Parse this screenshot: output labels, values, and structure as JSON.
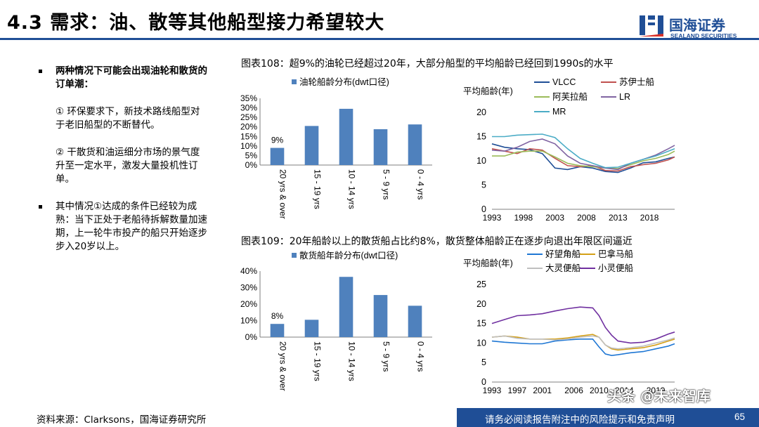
{
  "header": {
    "title": "4.3 需求：油、散等其他船型接力希望较大",
    "logo_cn": "国海证券",
    "logo_en": "SEALAND SECURITIES",
    "brand_color": "#1f4e96"
  },
  "bullets": {
    "b1": "两种情况下可能会出现油轮和散货的订单潮：",
    "p1": "① 环保要求下，新技术路线船型对于老旧船型的不断替代。",
    "p2": "② 干散货和油运细分市场的景气度升至一定水平，激发大量投机性订单。",
    "b2": "其中情况①达成的条件已经较为成熟：当下正处于老船待拆解数量加速期，上一轮牛市投产的船只开始逐步步入20岁以上。"
  },
  "figures": {
    "fig108_title": "图表108：超9%的油轮已经超过20年，大部分船型的平均船龄已经回到1990s的水平",
    "fig109_title": "图表109：20年船龄以上的散货船占比约8%，散货整体船龄正在逐步向退出年限区间逼近"
  },
  "footer": {
    "source": "资料来源：Clarksons，国海证券研究所",
    "disclaimer": "请务必阅读报告附注中的风险提示和免责声明",
    "page": "65",
    "watermark": "头条 @未来智库"
  },
  "chart_data": [
    {
      "type": "bar",
      "legend": "油轮船龄分布(dwt口径)",
      "categories": [
        "20 yrs & over",
        "15 - 19 yrs",
        "10 - 14 yrs",
        "5 - 9 yrs",
        "0 - 4 yrs"
      ],
      "values": [
        9,
        20.5,
        29.5,
        18.8,
        21.3
      ],
      "data_labels": [
        "9%",
        "",
        "",
        "",
        ""
      ],
      "yticks": [
        "0%",
        "5%",
        "10%",
        "15%",
        "20%",
        "25%",
        "30%",
        "35%"
      ],
      "ylim": [
        0,
        35
      ],
      "color": "#4f81bd"
    },
    {
      "type": "line",
      "ylabel": "平均船龄(年)",
      "xticks": [
        "1993",
        "1998",
        "2003",
        "2008",
        "2013",
        "2018"
      ],
      "yticks": [
        "0",
        "5",
        "10",
        "15",
        "20"
      ],
      "xlim": [
        1993,
        2022
      ],
      "ylim": [
        0,
        20
      ],
      "series": [
        {
          "name": "VLCC",
          "color": "#1f4e96",
          "x": [
            1993,
            1995,
            1997,
            1999,
            2001,
            2003,
            2005,
            2007,
            2009,
            2011,
            2013,
            2015,
            2017,
            2019,
            2021,
            2022
          ],
          "y": [
            13.5,
            12.8,
            12.5,
            12.3,
            11.5,
            8.5,
            8.2,
            8.8,
            8.5,
            7.8,
            7.6,
            8.5,
            9.6,
            9.8,
            10.5,
            10.8
          ]
        },
        {
          "name": "苏伊士船",
          "color": "#c0504d",
          "x": [
            1993,
            1995,
            1997,
            1999,
            2001,
            2003,
            2005,
            2007,
            2009,
            2011,
            2013,
            2015,
            2017,
            2019,
            2021,
            2022
          ],
          "y": [
            12.5,
            12,
            11.5,
            12.5,
            12.2,
            10.5,
            9,
            8.8,
            9,
            8,
            7.9,
            8.8,
            9.2,
            9.5,
            10.2,
            10.8
          ]
        },
        {
          "name": "阿芙拉船",
          "color": "#9bbb59",
          "x": [
            1993,
            1995,
            1997,
            1999,
            2001,
            2003,
            2005,
            2007,
            2009,
            2011,
            2013,
            2015,
            2017,
            2019,
            2021,
            2022
          ],
          "y": [
            11,
            11,
            11.8,
            12,
            12,
            10.8,
            9.5,
            9,
            8.8,
            8.5,
            8.4,
            9.2,
            10,
            10.5,
            11.3,
            12
          ]
        },
        {
          "name": "LR",
          "color": "#8064a2",
          "x": [
            1993,
            1995,
            1997,
            1999,
            2001,
            2003,
            2005,
            2007,
            2009,
            2011,
            2013,
            2015,
            2017,
            2019,
            2021,
            2022
          ],
          "y": [
            12.2,
            12,
            12.8,
            14,
            14.5,
            13.5,
            11,
            9.5,
            9,
            8.5,
            8.2,
            9.5,
            10.3,
            11.2,
            12.5,
            13.2
          ]
        },
        {
          "name": "MR",
          "color": "#4bacc6",
          "x": [
            1993,
            1995,
            1997,
            1999,
            2001,
            2003,
            2005,
            2007,
            2009,
            2011,
            2013,
            2015,
            2017,
            2019,
            2021,
            2022
          ],
          "y": [
            15,
            15,
            15.3,
            15.4,
            15.5,
            14.8,
            12.5,
            10.5,
            9.5,
            8.6,
            8.7,
            9.5,
            10.3,
            11,
            12,
            12.5
          ]
        }
      ]
    },
    {
      "type": "bar",
      "legend": "散货船年龄分布(dwt口径)",
      "categories": [
        "20 yrs & over",
        "15 - 19 yrs",
        "10 - 14 yrs",
        "5 - 9 yrs",
        "0 - 4 yrs"
      ],
      "values": [
        8,
        10.5,
        36.5,
        25.5,
        19
      ],
      "data_labels": [
        "8%",
        "",
        "",
        "",
        ""
      ],
      "yticks": [
        "0%",
        "10%",
        "20%",
        "30%",
        "40%"
      ],
      "ylim": [
        0,
        40
      ],
      "color": "#4f81bd"
    },
    {
      "type": "line",
      "ylabel": "平均船龄(年)",
      "xticks": [
        "1993",
        "1997",
        "2001",
        "2006",
        "2010",
        "2014",
        "2019"
      ],
      "yticks": [
        "0",
        "5",
        "10",
        "15",
        "20",
        "25"
      ],
      "xlim": [
        1993,
        2022
      ],
      "ylim": [
        0,
        25
      ],
      "series": [
        {
          "name": "好望角船",
          "color": "#1f77d4",
          "x": [
            1993,
            1995,
            1997,
            1999,
            2001,
            2003,
            2005,
            2007,
            2009,
            2010,
            2011,
            2012,
            2013,
            2015,
            2017,
            2019,
            2021,
            2022
          ],
          "y": [
            10.5,
            10.2,
            10,
            9.8,
            9.8,
            10.5,
            10.8,
            11,
            11,
            9,
            7.2,
            6.8,
            7,
            7.5,
            7.8,
            8.5,
            9.2,
            9.8
          ]
        },
        {
          "name": "巴拿马船",
          "color": "#d4a017",
          "x": [
            1993,
            1995,
            1997,
            1999,
            2001,
            2003,
            2005,
            2007,
            2009,
            2010,
            2011,
            2012,
            2013,
            2015,
            2017,
            2019,
            2021,
            2022
          ],
          "y": [
            11.5,
            11.8,
            11.5,
            11,
            11,
            11,
            11.3,
            11.8,
            12.2,
            11.5,
            9.5,
            8.5,
            8.2,
            8.5,
            8.8,
            9.5,
            10.5,
            11
          ]
        },
        {
          "name": "大灵便船",
          "color": "#bfbfbf",
          "x": [
            1993,
            1995,
            1997,
            1999,
            2001,
            2003,
            2005,
            2007,
            2009,
            2010,
            2011,
            2012,
            2013,
            2015,
            2017,
            2019,
            2021,
            2022
          ],
          "y": [
            11.5,
            11.8,
            11.2,
            11,
            11,
            10.8,
            11,
            11.5,
            11.8,
            11.5,
            9.5,
            8.7,
            8.5,
            8.8,
            9.2,
            10,
            10.8,
            11.3
          ]
        },
        {
          "name": "小灵便船",
          "color": "#7030a0",
          "x": [
            1993,
            1995,
            1997,
            1999,
            2001,
            2003,
            2005,
            2007,
            2009,
            2010,
            2011,
            2012,
            2013,
            2015,
            2017,
            2019,
            2021,
            2022
          ],
          "y": [
            15,
            16,
            17,
            17.2,
            17.5,
            18.2,
            18.8,
            19.2,
            19,
            17,
            14,
            12,
            10.5,
            10,
            10.2,
            11,
            12.3,
            12.8
          ]
        }
      ]
    }
  ]
}
